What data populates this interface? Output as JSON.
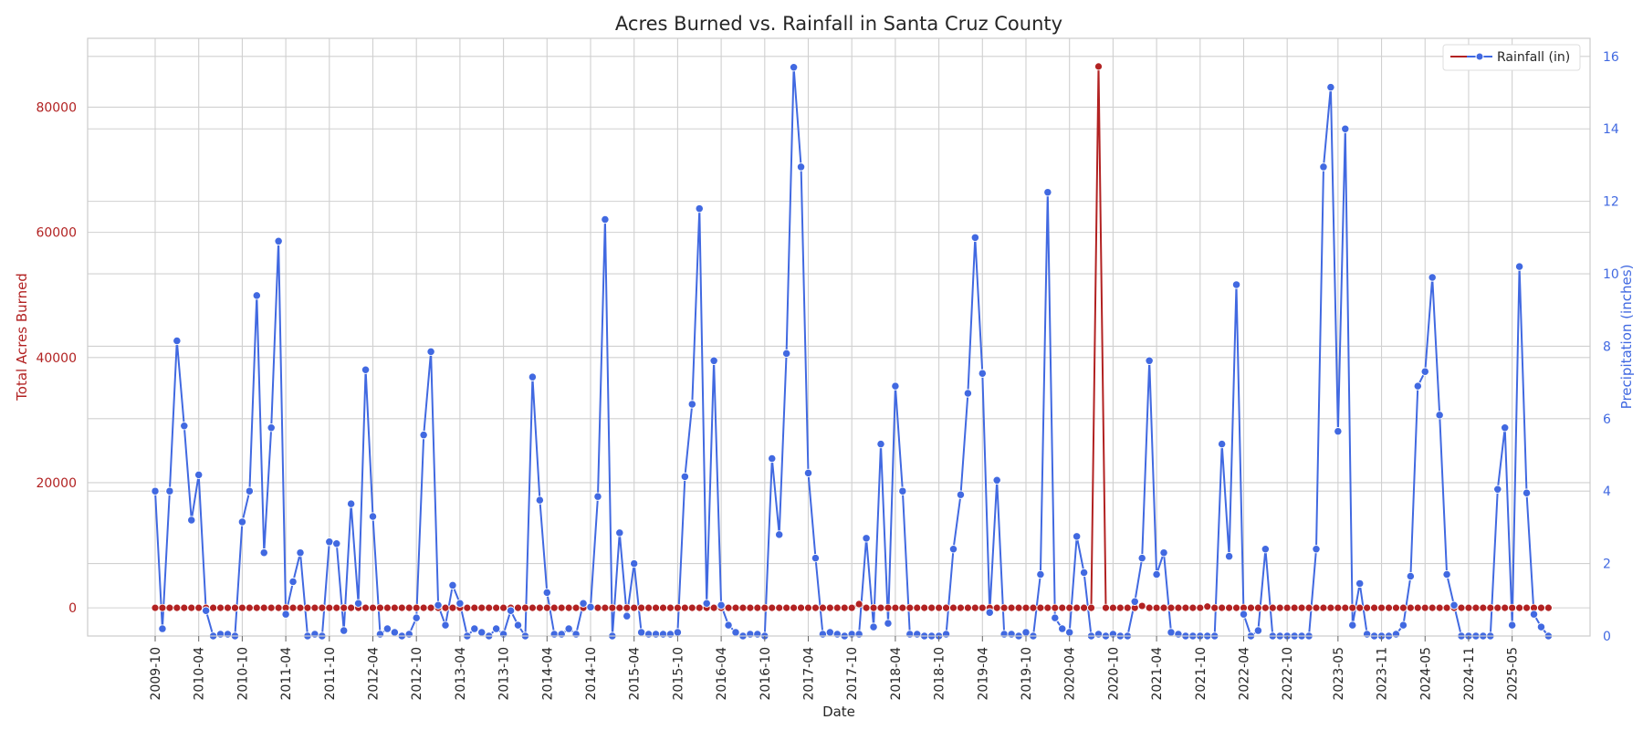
{
  "chart_data": {
    "type": "line",
    "title": "Acres Burned vs. Rainfall in Santa Cruz County",
    "xlabel": "Date",
    "ylabel": "Total Acres Burned",
    "y2label": "Precipitation (inches)",
    "start_date": "2009-10",
    "ylim": [
      -4500,
      91000
    ],
    "y2lim": [
      0,
      16.5
    ],
    "yticks": [
      0,
      20000,
      40000,
      60000,
      80000
    ],
    "y2ticks": [
      0,
      2,
      4,
      6,
      8,
      10,
      12,
      14,
      16
    ],
    "xticks": [
      "2009-10",
      "2010-04",
      "2010-10",
      "2011-04",
      "2011-10",
      "2012-04",
      "2012-10",
      "2013-04",
      "2013-10",
      "2014-04",
      "2014-10",
      "2015-04",
      "2015-10",
      "2016-04",
      "2016-10",
      "2017-04",
      "2017-10",
      "2018-04",
      "2018-10",
      "2019-04",
      "2019-10",
      "2020-04",
      "2020-10",
      "2021-04",
      "2021-10",
      "2022-04",
      "2022-10",
      "2023-05",
      "2023-11",
      "2024-05",
      "2024-11",
      "2025-05"
    ],
    "grid": true,
    "legend_position": "top-right",
    "series": [
      {
        "name": "",
        "axis": "left",
        "color": "#b22222",
        "spikes": {
          "2017-11": 600,
          "2020-08": 86500,
          "2021-02": 300,
          "2021-11": 200
        },
        "baseline": 0
      },
      {
        "name": "Rainfall (in)",
        "axis": "right",
        "color": "#4169e1",
        "values": [
          4.0,
          0.2,
          4.0,
          8.15,
          5.8,
          3.2,
          4.45,
          0.7,
          0.0,
          0.05,
          0.05,
          0.0,
          3.15,
          4.0,
          9.4,
          2.3,
          5.75,
          10.9,
          0.6,
          1.5,
          2.3,
          0.0,
          0.05,
          0.0,
          2.6,
          2.55,
          0.15,
          3.65,
          0.9,
          7.35,
          3.3,
          0.05,
          0.2,
          0.1,
          0.0,
          0.05,
          0.5,
          5.55,
          7.85,
          0.85,
          0.3,
          1.4,
          0.9,
          0.0,
          0.2,
          0.1,
          0.0,
          0.2,
          0.05,
          0.7,
          0.3,
          0.0,
          7.15,
          3.75,
          1.2,
          0.05,
          0.05,
          0.2,
          0.05,
          0.9,
          0.8,
          3.85,
          11.5,
          0.0,
          2.85,
          0.55,
          2.0,
          0.1,
          0.05,
          0.05,
          0.05,
          0.05,
          0.1,
          4.4,
          6.4,
          11.8,
          0.9,
          7.6,
          0.85,
          0.3,
          0.1,
          0.0,
          0.05,
          0.05,
          0.0,
          4.9,
          2.8,
          7.8,
          15.7,
          12.95,
          4.5,
          2.15,
          0.05,
          0.1,
          0.05,
          0.0,
          0.05,
          0.05,
          2.7,
          0.25,
          5.3,
          0.35,
          6.9,
          4.0,
          0.05,
          0.05,
          0.0,
          0.0,
          0.0,
          0.05,
          2.4,
          3.9,
          6.7,
          11.0,
          7.25,
          0.65,
          4.3,
          0.05,
          0.05,
          0.0,
          0.1,
          0.0,
          1.7,
          12.25,
          0.5,
          0.2,
          0.1,
          2.75,
          1.75,
          0.0,
          0.05,
          0.0,
          0.05,
          0.0,
          0.0,
          0.95,
          2.15,
          7.6,
          1.7,
          2.3,
          0.1,
          0.05,
          0.0,
          0.0,
          0.0,
          0.0,
          0.0,
          5.3,
          2.2,
          9.7,
          0.6,
          0.0,
          0.15,
          2.4,
          0.0,
          0.0,
          0.0,
          0.0,
          0.0,
          0.0,
          2.4,
          12.95,
          15.15,
          5.65,
          14.0,
          0.3,
          1.45,
          0.05,
          0.0,
          0.0,
          0.0,
          0.05,
          0.3,
          1.65,
          6.9,
          7.3,
          9.9,
          6.1,
          1.7,
          0.85,
          0.0,
          0.0,
          0.0,
          0.0,
          0.0,
          4.05,
          5.75,
          0.3,
          10.2,
          3.95,
          0.6,
          0.25,
          0.0
        ]
      }
    ]
  }
}
